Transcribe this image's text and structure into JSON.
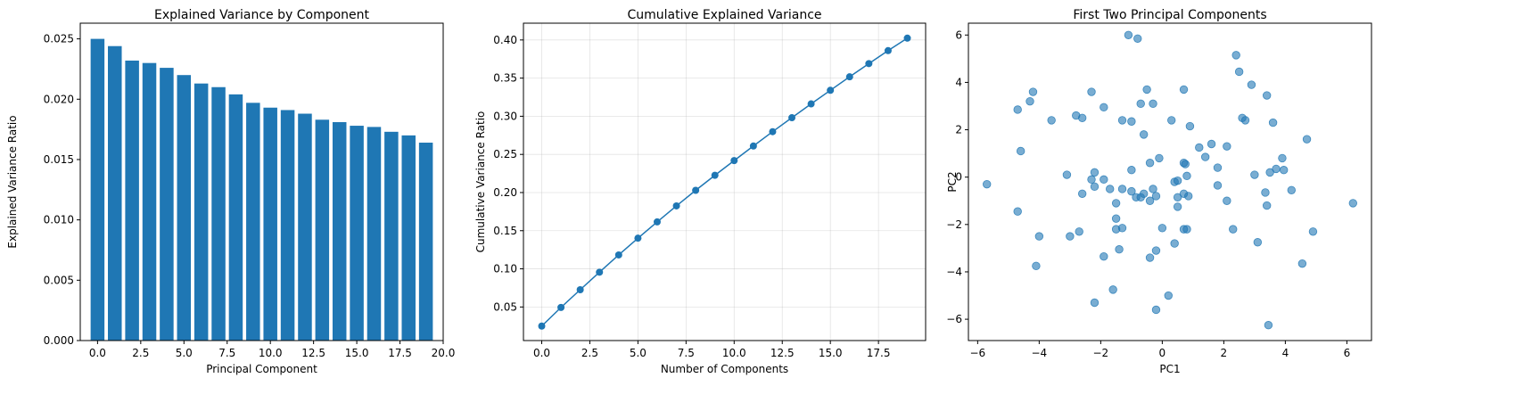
{
  "chart_data": [
    {
      "type": "bar",
      "title": "Explained Variance by Component",
      "xlabel": "Principal Component",
      "ylabel": "Explained Variance Ratio",
      "xlim": [
        -1.0,
        20.0
      ],
      "ylim": [
        0,
        0.0263
      ],
      "xticks": [
        "0.0",
        "2.5",
        "5.0",
        "7.5",
        "10.0",
        "12.5",
        "15.0",
        "17.5",
        "20.0"
      ],
      "yticks": [
        "0.000",
        "0.005",
        "0.010",
        "0.015",
        "0.020",
        "0.025"
      ],
      "grid": false,
      "color": "#1f77b4",
      "categories": [
        0,
        1,
        2,
        3,
        4,
        5,
        6,
        7,
        8,
        9,
        10,
        11,
        12,
        13,
        14,
        15,
        16,
        17,
        18,
        19
      ],
      "values": [
        0.025,
        0.0244,
        0.0232,
        0.023,
        0.0226,
        0.022,
        0.0213,
        0.021,
        0.0204,
        0.0197,
        0.0193,
        0.0191,
        0.0188,
        0.0183,
        0.0181,
        0.0178,
        0.0177,
        0.0173,
        0.017,
        0.0164
      ]
    },
    {
      "type": "line",
      "title": "Cumulative Explained Variance",
      "xlabel": "Number of Components",
      "ylabel": "Cumulative Variance Ratio",
      "xlim": [
        -0.95,
        19.95
      ],
      "ylim": [
        0.006,
        0.422
      ],
      "xticks": [
        "0.0",
        "2.5",
        "5.0",
        "7.5",
        "10.0",
        "12.5",
        "15.0",
        "17.5"
      ],
      "yticks": [
        "0.05",
        "0.10",
        "0.15",
        "0.20",
        "0.25",
        "0.30",
        "0.35",
        "0.40"
      ],
      "grid": true,
      "color": "#1f77b4",
      "x": [
        0,
        1,
        2,
        3,
        4,
        5,
        6,
        7,
        8,
        9,
        10,
        11,
        12,
        13,
        14,
        15,
        16,
        17,
        18,
        19
      ],
      "y": [
        0.025,
        0.0494,
        0.0726,
        0.0956,
        0.1182,
        0.1402,
        0.1615,
        0.1825,
        0.2029,
        0.2226,
        0.2419,
        0.261,
        0.2798,
        0.2981,
        0.3162,
        0.334,
        0.3517,
        0.369,
        0.386,
        0.4024
      ]
    },
    {
      "type": "scatter",
      "title": "First Two Principal Components",
      "xlabel": "PC1",
      "ylabel": "PC2",
      "xlim": [
        -6.3,
        6.8
      ],
      "ylim": [
        -6.9,
        6.5
      ],
      "xticks": [
        "−6",
        "−4",
        "−2",
        "0",
        "2",
        "4",
        "6"
      ],
      "yticks": [
        "−6",
        "−4",
        "−2",
        "0",
        "2",
        "4",
        "6"
      ],
      "grid": false,
      "color": "#1f77b4",
      "opacity": 0.6,
      "points": [
        [
          -1.1,
          6.0
        ],
        [
          -0.8,
          5.85
        ],
        [
          2.4,
          5.15
        ],
        [
          2.5,
          4.45
        ],
        [
          2.9,
          3.9
        ],
        [
          3.4,
          3.45
        ],
        [
          -4.2,
          3.6
        ],
        [
          -2.3,
          3.6
        ],
        [
          -0.5,
          3.7
        ],
        [
          0.7,
          3.7
        ],
        [
          -4.3,
          3.2
        ],
        [
          -1.9,
          2.95
        ],
        [
          -0.7,
          3.1
        ],
        [
          -0.3,
          3.1
        ],
        [
          -4.7,
          2.85
        ],
        [
          -2.8,
          2.6
        ],
        [
          -2.6,
          2.5
        ],
        [
          -3.6,
          2.4
        ],
        [
          -1.3,
          2.4
        ],
        [
          -1.0,
          2.35
        ],
        [
          0.3,
          2.4
        ],
        [
          2.6,
          2.5
        ],
        [
          2.7,
          2.4
        ],
        [
          3.6,
          2.3
        ],
        [
          0.9,
          2.15
        ],
        [
          -0.6,
          1.8
        ],
        [
          4.7,
          1.6
        ],
        [
          1.6,
          1.4
        ],
        [
          1.2,
          1.25
        ],
        [
          2.1,
          1.3
        ],
        [
          -4.6,
          1.1
        ],
        [
          -0.1,
          0.8
        ],
        [
          1.4,
          0.85
        ],
        [
          3.9,
          0.8
        ],
        [
          -0.4,
          0.6
        ],
        [
          0.7,
          0.6
        ],
        [
          0.75,
          0.55
        ],
        [
          1.8,
          0.4
        ],
        [
          3.7,
          0.35
        ],
        [
          3.95,
          0.3
        ],
        [
          -1.0,
          0.3
        ],
        [
          -3.1,
          0.1
        ],
        [
          -2.2,
          0.2
        ],
        [
          0.8,
          0.05
        ],
        [
          3.0,
          0.1
        ],
        [
          3.5,
          0.2
        ],
        [
          -2.3,
          -0.1
        ],
        [
          -1.9,
          -0.1
        ],
        [
          0.4,
          -0.2
        ],
        [
          0.5,
          -0.15
        ],
        [
          -1.7,
          -0.5
        ],
        [
          -1.3,
          -0.5
        ],
        [
          -1.0,
          -0.6
        ],
        [
          -0.6,
          -0.7
        ],
        [
          -0.3,
          -0.5
        ],
        [
          -2.2,
          -0.4
        ],
        [
          -2.6,
          -0.7
        ],
        [
          1.8,
          -0.35
        ],
        [
          4.2,
          -0.55
        ],
        [
          3.35,
          -0.65
        ],
        [
          0.7,
          -0.7
        ],
        [
          -0.85,
          -0.85
        ],
        [
          -0.7,
          -0.85
        ],
        [
          -0.2,
          -0.8
        ],
        [
          0.5,
          -0.85
        ],
        [
          0.85,
          -0.8
        ],
        [
          -1.5,
          -1.1
        ],
        [
          -0.4,
          -1.0
        ],
        [
          2.1,
          -1.0
        ],
        [
          6.2,
          -1.1
        ],
        [
          -5.7,
          -0.3
        ],
        [
          0.5,
          -1.25
        ],
        [
          3.4,
          -1.2
        ],
        [
          -4.7,
          -1.45
        ],
        [
          -1.5,
          -1.75
        ],
        [
          -1.5,
          -2.2
        ],
        [
          -1.3,
          -2.15
        ],
        [
          0.0,
          -2.15
        ],
        [
          0.7,
          -2.2
        ],
        [
          0.8,
          -2.2
        ],
        [
          2.3,
          -2.2
        ],
        [
          -2.7,
          -2.3
        ],
        [
          -4.0,
          -2.5
        ],
        [
          -3.0,
          -2.5
        ],
        [
          4.9,
          -2.3
        ],
        [
          0.4,
          -2.8
        ],
        [
          3.1,
          -2.75
        ],
        [
          -1.4,
          -3.05
        ],
        [
          -0.2,
          -3.1
        ],
        [
          -1.9,
          -3.35
        ],
        [
          -0.4,
          -3.4
        ],
        [
          4.55,
          -3.65
        ],
        [
          -4.1,
          -3.75
        ],
        [
          -1.6,
          -4.75
        ],
        [
          0.2,
          -5.0
        ],
        [
          -2.2,
          -5.3
        ],
        [
          -0.2,
          -5.6
        ],
        [
          3.45,
          -6.25
        ]
      ]
    }
  ]
}
